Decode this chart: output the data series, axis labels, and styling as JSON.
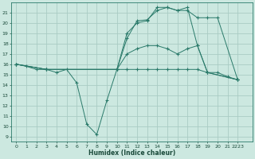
{
  "xlabel": "Humidex (Indice chaleur)",
  "bg_color": "#cce8e0",
  "grid_color": "#aaccC4",
  "line_color": "#2a7a6a",
  "xlim": [
    -0.5,
    23.5
  ],
  "ylim": [
    8.5,
    22.0
  ],
  "yticks": [
    9,
    10,
    11,
    12,
    13,
    14,
    15,
    16,
    17,
    18,
    19,
    20,
    21
  ],
  "xtick_vals": [
    0,
    1,
    2,
    3,
    4,
    5,
    6,
    7,
    8,
    9,
    10,
    11,
    12,
    13,
    14,
    15,
    16,
    17,
    18,
    19,
    20,
    21,
    22
  ],
  "xtick_labels": [
    "0",
    "1",
    "2",
    "3",
    "4",
    "5",
    "6",
    "7",
    "8",
    "9",
    "10",
    "11",
    "12",
    "13",
    "14",
    "15",
    "16",
    "17",
    "18",
    "19",
    "20",
    "21",
    "2223"
  ],
  "line1_x": [
    0,
    1,
    2,
    3,
    4,
    5,
    6,
    7,
    8,
    9,
    10,
    11,
    12,
    13,
    14,
    15,
    16,
    17,
    18,
    19,
    20,
    21,
    22
  ],
  "line1_y": [
    16,
    15.8,
    15.5,
    15.5,
    15.2,
    15.5,
    14.2,
    10.2,
    9.2,
    12.5,
    15.5,
    15.5,
    15.5,
    15.5,
    15.5,
    15.5,
    15.5,
    15.5,
    15.5,
    15.2,
    15.2,
    14.8,
    14.5
  ],
  "line2_x": [
    0,
    3,
    10,
    11,
    12,
    13,
    14,
    15,
    16,
    17,
    18,
    19,
    20,
    22
  ],
  "line2_y": [
    16,
    15.5,
    15.5,
    18.5,
    20.2,
    20.3,
    21.2,
    21.5,
    21.2,
    21.2,
    20.5,
    20.5,
    20.5,
    14.5
  ],
  "line3_x": [
    0,
    3,
    10,
    11,
    12,
    13,
    14,
    15,
    16,
    17,
    18,
    19,
    22
  ],
  "line3_y": [
    16,
    15.5,
    15.5,
    19.0,
    20.0,
    20.2,
    21.5,
    21.5,
    21.2,
    21.5,
    17.8,
    15.2,
    14.5
  ],
  "line4_x": [
    0,
    3,
    10,
    11,
    12,
    13,
    14,
    15,
    16,
    17,
    18,
    19,
    22
  ],
  "line4_y": [
    16,
    15.5,
    15.5,
    17.0,
    17.5,
    17.8,
    17.8,
    17.5,
    17.0,
    17.5,
    17.8,
    15.2,
    14.5
  ]
}
